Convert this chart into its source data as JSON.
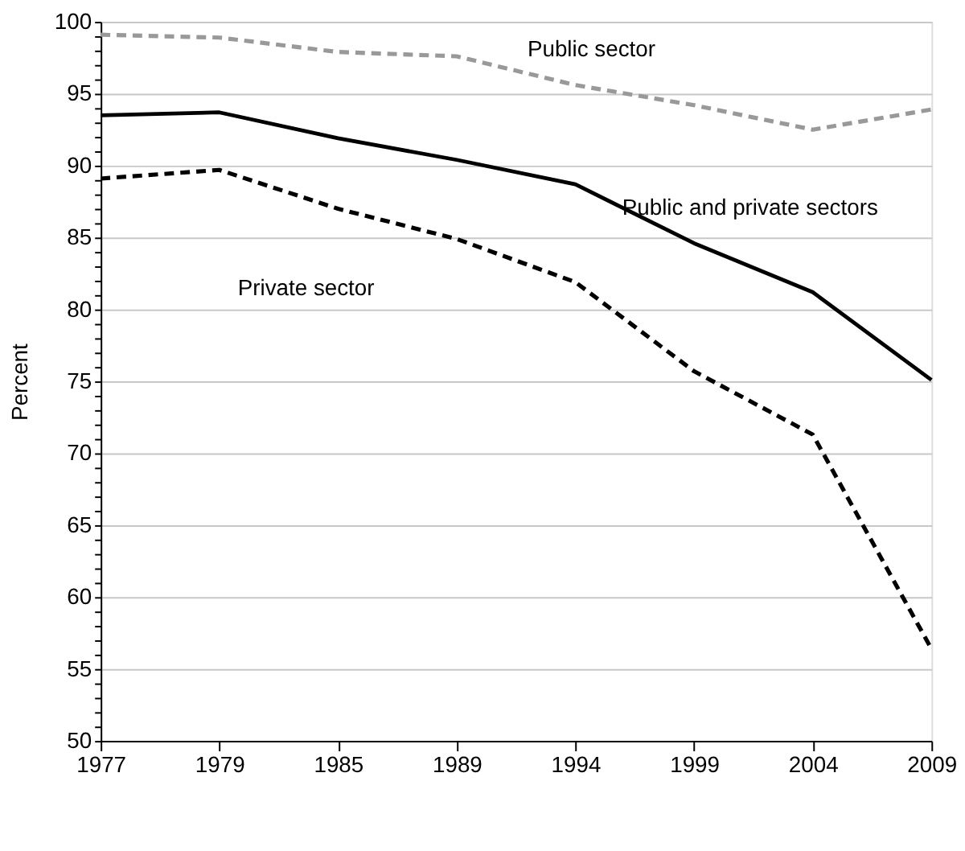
{
  "chart_data": {
    "type": "line",
    "ylabel": "Percent",
    "categories": [
      "1977",
      "1979",
      "1985",
      "1989",
      "1994",
      "1999",
      "2004",
      "2009"
    ],
    "series": [
      {
        "name": "Public sector",
        "color": "#999999",
        "line_style": "dashed",
        "values": [
          99.1,
          98.9,
          97.9,
          97.6,
          95.6,
          94.2,
          92.5,
          93.9
        ]
      },
      {
        "name": "Public and private sectors",
        "color": "#000000",
        "line_style": "solid",
        "values": [
          93.5,
          93.7,
          91.9,
          90.4,
          88.7,
          84.6,
          81.2,
          75.1
        ]
      },
      {
        "name": "Private sector",
        "color": "#000000",
        "line_style": "dashed",
        "values": [
          89.1,
          89.7,
          87.0,
          84.9,
          81.9,
          75.7,
          71.3,
          56.4
        ]
      }
    ],
    "ylim": [
      50,
      100
    ],
    "yticks": [
      50,
      {
        "value": 51,
        "label": null
      },
      {
        "value": 52,
        "label": null
      },
      {
        "value": 53,
        "label": null
      },
      {
        "value": 54,
        "label": null
      },
      55,
      {
        "value": 56,
        "label": null
      },
      {
        "value": 57,
        "label": null
      },
      {
        "value": 58,
        "label": null
      },
      {
        "value": 59,
        "label": null
      },
      60,
      {
        "value": 61,
        "label": null
      },
      {
        "value": 62,
        "label": null
      },
      {
        "value": 63,
        "label": null
      },
      {
        "value": 64,
        "label": null
      },
      65,
      {
        "value": 66,
        "label": null
      },
      {
        "value": 67,
        "label": null
      },
      {
        "value": 68,
        "label": null
      },
      {
        "value": 69,
        "label": null
      },
      70,
      {
        "value": 71,
        "label": null
      },
      {
        "value": 72,
        "label": null
      },
      {
        "value": 73,
        "label": null
      },
      {
        "value": 74,
        "label": null
      },
      75,
      {
        "value": 76,
        "label": null
      },
      {
        "value": 77,
        "label": null
      },
      {
        "value": 78,
        "label": null
      },
      {
        "value": 79,
        "label": null
      },
      80,
      {
        "value": 81,
        "label": null
      },
      {
        "value": 82,
        "label": null
      },
      {
        "value": 83,
        "label": null
      },
      {
        "value": 84,
        "label": null
      },
      85,
      {
        "value": 86,
        "label": null
      },
      {
        "value": 87,
        "label": null
      },
      {
        "value": 88,
        "label": null
      },
      {
        "value": 89,
        "label": null
      },
      90,
      {
        "value": 91,
        "label": null
      },
      {
        "value": 92,
        "label": null
      },
      {
        "value": 93,
        "label": null
      },
      {
        "value": 94,
        "label": null
      },
      95,
      {
        "value": 96,
        "label": null
      },
      {
        "value": 97,
        "label": null
      },
      {
        "value": 98,
        "label": null
      },
      {
        "value": 99,
        "label": null
      },
      100
    ],
    "grid": "y",
    "legend": false,
    "marker": "none"
  }
}
